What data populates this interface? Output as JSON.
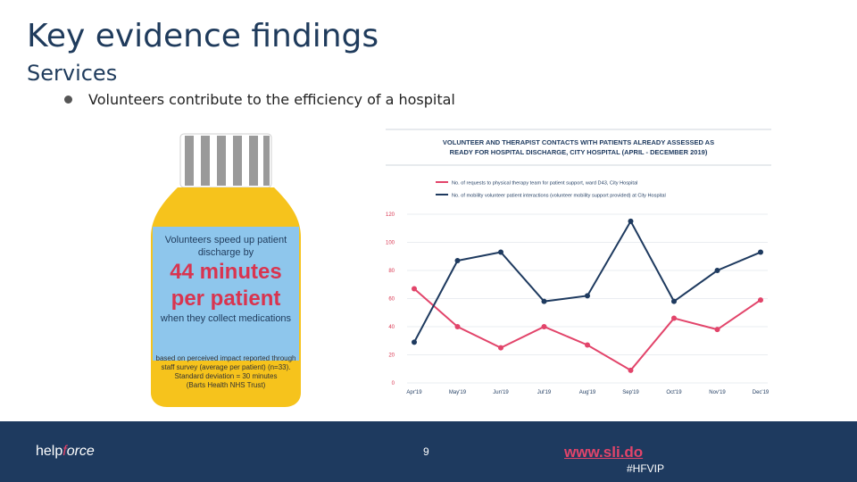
{
  "slide": {
    "title": "Key evidence findings",
    "subtitle": "Services",
    "bullet": "Volunteers contribute to the efficiency of a hospital"
  },
  "bottle": {
    "line1": "Volunteers speed up patient",
    "line2": "discharge by",
    "big1": "44 minutes",
    "big2": "per patient",
    "line3": "when they collect medications",
    "note1": "based on perceived impact reported through",
    "note2": "staff survey (average per patient) (n=33).",
    "note3": "Standard deviation = 30 minutes",
    "note4": "(Barts Health NHS Trust)"
  },
  "footer": {
    "logo_a": "help",
    "logo_b": "force",
    "page": "9",
    "link": "www.sli.do",
    "hashtag": "#HFVIP"
  },
  "colors": {
    "footer_bg": "#1e3a5f",
    "red": "#e2446a",
    "navy": "#1e3a5f",
    "bottle_yellow": "#f6c31c",
    "label_blue": "#8ec6ec"
  },
  "chart_data": {
    "type": "line",
    "title_line1": "VOLUNTEER AND THERAPIST CONTACTS WITH PATIENTS ALREADY ASSESSED AS",
    "title_line2": "READY FOR HOSPITAL DISCHARGE, CITY HOSPITAL (APRIL - DECEMBER 2019)",
    "categories": [
      "Apr'19",
      "May'19",
      "Jun'19",
      "Jul'19",
      "Aug'19",
      "Sep'19",
      "Oct'19",
      "Nov'19",
      "Dec'19"
    ],
    "yticks": [
      "0",
      "20",
      "40",
      "60",
      "80",
      "100",
      "120"
    ],
    "ylim": [
      0,
      120
    ],
    "legend_placement": "top",
    "series": [
      {
        "name": "No. of requests to physical therapy team for patient support, ward D43, City Hospital",
        "color": "#e2446a",
        "values": [
          67,
          40,
          25,
          40,
          27,
          9,
          46,
          38,
          59
        ]
      },
      {
        "name": "No. of mobility volunteer patient interactions (volunteer mobility support provided) at City Hospital",
        "color": "#1e3a5f",
        "values": [
          29,
          87,
          93,
          58,
          62,
          115,
          58,
          80,
          93
        ]
      }
    ]
  }
}
